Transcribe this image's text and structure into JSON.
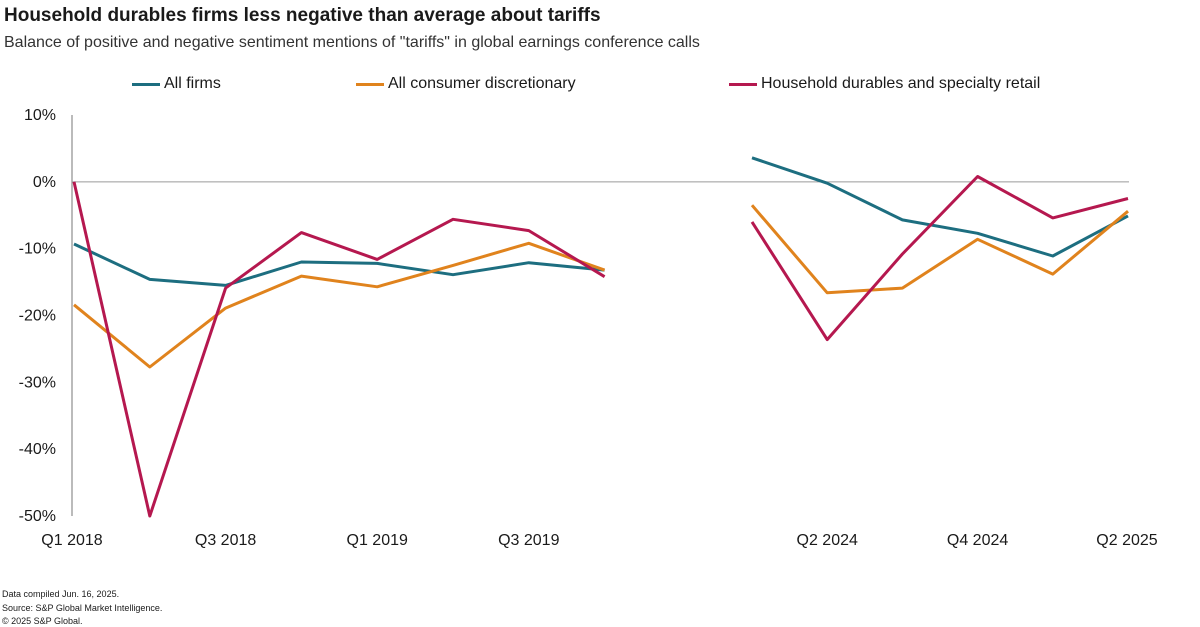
{
  "header": {
    "title": "Household durables firms less negative than average about tariffs",
    "subtitle": "Balance of positive and negative sentiment mentions of \"tariffs\" in global earnings conference calls"
  },
  "chart_data": {
    "type": "line",
    "title": "Household durables firms less negative than average about tariffs",
    "subtitle": "Balance of positive and negative sentiment mentions of \"tariffs\" in global earnings conference calls",
    "xlabel": "",
    "ylabel": "",
    "ylim": [
      -50,
      10
    ],
    "yticks": [
      10,
      0,
      -10,
      -20,
      -30,
      -40,
      -50
    ],
    "ytick_labels": [
      "10%",
      "0%",
      "-10%",
      "-20%",
      "-30%",
      "-40%",
      "-50%"
    ],
    "categories": [
      "Q1 2018",
      "Q2 2018",
      "Q3 2018",
      "Q4 2018",
      "Q1 2019",
      "Q2 2019",
      "Q3 2019",
      "Q4 2019",
      "Q1 2024",
      "Q2 2024",
      "Q3 2024",
      "Q4 2024",
      "Q1 2025",
      "Q2 2025"
    ],
    "xtick_labels": [
      {
        "index": 0,
        "label": "Q1 2018"
      },
      {
        "index": 2,
        "label": "Q3 2018"
      },
      {
        "index": 4,
        "label": "Q1 2019"
      },
      {
        "index": 6,
        "label": "Q3 2019"
      },
      {
        "index": 9,
        "label": "Q2 2024"
      },
      {
        "index": 11,
        "label": "Q4 2024"
      },
      {
        "index": 13,
        "label": "Q2 2025"
      }
    ],
    "gap_after_index": 7,
    "grid": false,
    "legend_position": "top",
    "series": [
      {
        "name": "All firms",
        "color": "#1d6e80",
        "values": [
          -9.3,
          -14.6,
          -15.5,
          -12.0,
          -12.2,
          -13.9,
          -12.1,
          -13.2,
          3.6,
          -0.2,
          -5.7,
          -7.7,
          -11.1,
          -5.1
        ]
      },
      {
        "name": "All consumer discretionary",
        "color": "#e0831d",
        "values": [
          -18.4,
          -27.7,
          -18.9,
          -14.1,
          -15.7,
          -12.5,
          -9.2,
          -13.2,
          -3.5,
          -16.6,
          -15.9,
          -8.6,
          -13.8,
          -4.4
        ]
      },
      {
        "name": "Household durables and specialty retail",
        "color": "#b5184f",
        "values": [
          0.0,
          -50.0,
          -15.9,
          -7.6,
          -11.6,
          -5.6,
          -7.3,
          -14.2,
          -6.0,
          -23.6,
          -10.8,
          0.8,
          -5.4,
          -2.5
        ]
      }
    ]
  },
  "footer": {
    "compiled": "Data compiled Jun. 16, 2025.",
    "source": "Source: S&P Global Market Intelligence.",
    "copyright": "© 2025 S&P Global."
  }
}
